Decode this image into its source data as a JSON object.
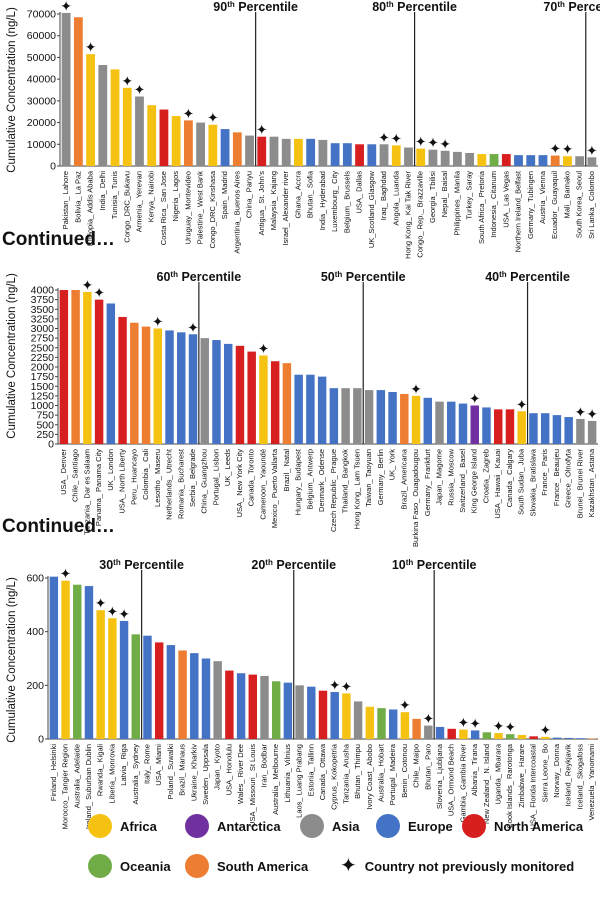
{
  "colors": {
    "Africa": "#f6c211",
    "Antarctica": "#7030a0",
    "Asia": "#8c8c8c",
    "Europe": "#4472c4",
    "North America": "#d81f1f",
    "Oceania": "#70ad47",
    "South America": "#ed7d31"
  },
  "continued_label": "Continued…",
  "legend": {
    "Africa": "Africa",
    "Antarctica": "Antarctica",
    "Asia": "Asia",
    "Europe": "Europe",
    "North America": "North America",
    "Oceania": "Oceania",
    "South America": "South America",
    "star": "Country not previously monitored"
  },
  "chart_data": [
    {
      "type": "bar",
      "ylabel": "Cumulative Concentration (ng/L)",
      "ylim": [
        0,
        70000
      ],
      "yticks": [
        "0",
        "10000",
        "20000",
        "30000",
        "40000",
        "50000",
        "60000",
        "70000"
      ],
      "percentiles": [
        {
          "label": "90",
          "after": "China_ Panyu"
        },
        {
          "label": "80",
          "after": "Hong Kong_ Kai Tak River"
        },
        {
          "label": "70",
          "after": "South Korea_ Seoul"
        }
      ],
      "categories": [
        "Pakistan_ Lahore",
        "Bolivia_ La Paz",
        "Ethiopia_ Addis Ababa",
        "India_ Delhi",
        "Tunisia_ Tunis",
        "Congo_DRC_Bukavu",
        "Armenia_ Yerevan",
        "Kenya_ Nairobi",
        "Costa Rica_ San Jose",
        "Nigeria_ Lagos",
        "Uruguay_ Montevideo",
        "Palestine_ West Bank",
        "Congo_DRC_Kinshasa",
        "Spain_ Madrid",
        "Argentina_ Buenos Aires",
        "China_ Panyu",
        "Antigua_ St. John's",
        "Malaysia_ Kajang",
        "Israel_ Alexander river",
        "Ghana_ Accra",
        "Bhutan_ Sofia",
        "India_ Hyderabad",
        "Luxembourg_ City",
        "Belgium_ Brussels",
        "USA_ Dallas",
        "UK_Scotland_Glasgow",
        "Iraq_ Baghdad",
        "Angola_ Luanda",
        "Hong Kong_ Kai Tak River",
        "Congo_ Rep._ Brazzaville",
        "Georgia_ Tbilisi",
        "Nepal_ Baisal",
        "Philippines_ Manila",
        "Turkey_ Saray",
        "South Africa_ Pretoria",
        "Indonesia_ Citanum",
        "USA_ Las Vegas",
        "Northern Ireland_Belfast",
        "Germany_ Tubingen",
        "Austria_ Vienna",
        "Ecuador_ Guayaquil",
        "Mali_ Bamako",
        "South Korea_ Seoul",
        "Sri Lanka_ Colombo"
      ],
      "values": [
        70500,
        68500,
        51500,
        46500,
        44500,
        36000,
        32000,
        28000,
        26000,
        23000,
        21000,
        20000,
        19000,
        17000,
        15500,
        14000,
        13500,
        13500,
        12500,
        12500,
        12500,
        12000,
        10500,
        10500,
        10000,
        10000,
        10000,
        9500,
        8500,
        8000,
        7500,
        7000,
        6500,
        6000,
        5500,
        5500,
        5500,
        5000,
        5000,
        5000,
        4800,
        4500,
        4500,
        4000
      ],
      "continent": [
        "Asia",
        "South America",
        "Africa",
        "Asia",
        "Africa",
        "Africa",
        "Asia",
        "Africa",
        "North America",
        "Africa",
        "South America",
        "Asia",
        "Africa",
        "Europe",
        "South America",
        "Asia",
        "North America",
        "Asia",
        "Asia",
        "Africa",
        "Europe",
        "Asia",
        "Europe",
        "Europe",
        "North America",
        "Europe",
        "Asia",
        "Africa",
        "Asia",
        "Africa",
        "Asia",
        "Asia",
        "Asia",
        "Asia",
        "Africa",
        "Oceania",
        "North America",
        "Europe",
        "Europe",
        "Europe",
        "South America",
        "Africa",
        "Asia",
        "Asia"
      ],
      "new_country": [
        true,
        false,
        true,
        false,
        false,
        true,
        true,
        false,
        false,
        false,
        true,
        false,
        true,
        false,
        false,
        false,
        true,
        false,
        false,
        false,
        false,
        false,
        false,
        false,
        false,
        false,
        true,
        true,
        false,
        true,
        true,
        true,
        false,
        false,
        false,
        false,
        false,
        false,
        false,
        false,
        true,
        true,
        false,
        true
      ]
    },
    {
      "type": "bar",
      "ylabel": "Cumulative Concentration (ng/L)",
      "ylim": [
        0,
        4000
      ],
      "yticks": [
        "0",
        "250",
        "500",
        "750",
        "1000",
        "1250",
        "1500",
        "1750",
        "2000",
        "2250",
        "2500",
        "2750",
        "3000",
        "3250",
        "3500",
        "3750",
        "4000"
      ],
      "percentiles": [
        {
          "label": "60",
          "after": "Serbia_ Belgrade"
        },
        {
          "label": "50",
          "after": "Hong Kong_ Lam Tsuen"
        },
        {
          "label": "40",
          "after": "South Sudan_ Juba"
        }
      ],
      "categories": [
        "USA_ Denver",
        "Chile_ Santiago",
        "Tanzania_ Dar es Salaam",
        "Panama_ Panama City",
        "UK_ London",
        "USA_ North Liberty",
        "Peru_ Huancayo",
        "Colombia_ Cali",
        "Lesotho_ Maseru",
        "Netherlands_ Utrecht",
        "Romania_ Bucharest",
        "Serbia_ Belgrade",
        "China_ Guangzhou",
        "Portugal_ Lisbon",
        "UK_ Leeds",
        "USA_ New York City",
        "Canada_ Toronto",
        "Cameroon_ Yaoundé",
        "Mexico_ Puerto Vallarta",
        "Brazil_ Natal",
        "Hungary_ Budapest",
        "Belgium_ Antwerp",
        "Denmark_ Odense",
        "Czech Republic_ Prague",
        "Thailand_ Bangkok",
        "Hong Kong_ Lam Tsuen",
        "Taiwan_ Taoyuan",
        "Germany_ Berlin",
        "UK_ York",
        "Brazil_ Americana",
        "Burkina Faso_ Ouagadougou",
        "Germany_ Frankfurt",
        "Japan_ Magome",
        "Russia_ Moscow",
        "Switzerland_ Basel",
        "King George Island",
        "Croatia_ Zagreb",
        "USA_ Hawaii_ Kauai",
        "Canada_ Calgary",
        "South Sudan_ Juba",
        "Slovakia_ Bratislava",
        "France_ Paris",
        "France_ Beaujeu",
        "Greece_ Olnofyta",
        "Brunei_ Brunei River",
        "Kazakhstan_ Astana"
      ],
      "values": [
        4000,
        4000,
        3950,
        3750,
        3650,
        3300,
        3150,
        3050,
        3000,
        2950,
        2900,
        2850,
        2750,
        2700,
        2600,
        2550,
        2400,
        2300,
        2150,
        2100,
        1800,
        1800,
        1750,
        1450,
        1450,
        1450,
        1400,
        1400,
        1350,
        1300,
        1250,
        1200,
        1100,
        1100,
        1050,
        1000,
        950,
        900,
        900,
        850,
        800,
        800,
        750,
        700,
        650,
        600
      ],
      "continent": [
        "North America",
        "South America",
        "Africa",
        "North America",
        "Europe",
        "North America",
        "South America",
        "South America",
        "Africa",
        "Europe",
        "Europe",
        "Europe",
        "Asia",
        "Europe",
        "Europe",
        "North America",
        "North America",
        "Africa",
        "North America",
        "South America",
        "Europe",
        "Europe",
        "Europe",
        "Europe",
        "Asia",
        "Asia",
        "Asia",
        "Europe",
        "Europe",
        "South America",
        "Africa",
        "Europe",
        "Asia",
        "Europe",
        "Europe",
        "Antarctica",
        "Europe",
        "North America",
        "North America",
        "Africa",
        "Europe",
        "Europe",
        "Europe",
        "Europe",
        "Asia",
        "Asia"
      ],
      "new_country": [
        false,
        false,
        true,
        true,
        false,
        false,
        false,
        false,
        true,
        false,
        false,
        true,
        false,
        false,
        false,
        false,
        false,
        true,
        false,
        false,
        false,
        false,
        false,
        false,
        false,
        false,
        false,
        false,
        false,
        false,
        true,
        false,
        false,
        false,
        false,
        true,
        false,
        false,
        false,
        true,
        false,
        false,
        false,
        false,
        true,
        true
      ]
    },
    {
      "type": "bar",
      "ylabel": "Cumulative Concentration (ng/L)",
      "ylim": [
        0,
        600
      ],
      "yticks": [
        "0",
        "200",
        "400",
        "600"
      ],
      "percentiles": [
        {
          "label": "30",
          "after": "Australia_ Sydney"
        },
        {
          "label": "20",
          "after": "Lithuania_ Vilnius"
        },
        {
          "label": "10",
          "after": "Bhutan_ Paro"
        }
      ],
      "categories": [
        "Finland_ Helsinki",
        "Morocco_ Tangier Region",
        "Australia_ Adelaide",
        "Ireland_ Suburban Dublin",
        "Rwanda_ Kigali",
        "Liberia_ Monrovia",
        "Latvia_ Riga",
        "Australia_ Sydney",
        "Italy_ Rome",
        "USA_ Miami",
        "Poland_ Suwalki",
        "Brazil_ Manaus",
        "Ukraine_ Kharkiv",
        "Sweden_ Uppsala",
        "Japan_ Kyoto",
        "USA_ Honolulu",
        "Wales_ River Dee",
        "USA_ Missouri_ St Louis",
        "Iran_ Bodbar",
        "Australia_ Melbourne",
        "Lithuania_ Vilnius",
        "Laos_ Luang Prabang",
        "Estonia_ Tallinn",
        "Canada_ Ottawa",
        "Cyprus_ Kokopetria",
        "Tanzania_ Arusha",
        "Bhutan_ Thimpu",
        "Ivory Coast_ Abobo",
        "Australia_ Hobart",
        "Portugal_ Madeira",
        "Benin_ Cotonou",
        "Chile_ Maipo",
        "Bhutan_ Paro",
        "Slovenia_ Ljubljana",
        "USA_ Ormond Beach",
        "Gambia_ Gambia River",
        "Albania_ Tirana",
        "New Zealand_ N. Island",
        "Uganda_ Mbarara",
        "Cook Islands_ Rarotonga",
        "Zimbabwe_ Harare",
        "USA_ Florida Intercoastal",
        "Sierra Leone_ Bo",
        "Norway_ Donna",
        "Iceland_ Reykjavik",
        "Iceland_ Skogafoss",
        "Venezuela_ Yanomami"
      ],
      "values": [
        605,
        590,
        575,
        570,
        480,
        450,
        440,
        390,
        385,
        360,
        350,
        330,
        320,
        300,
        290,
        255,
        245,
        240,
        235,
        215,
        210,
        200,
        195,
        180,
        175,
        170,
        140,
        120,
        115,
        110,
        100,
        75,
        50,
        45,
        38,
        35,
        32,
        25,
        22,
        18,
        15,
        10,
        8,
        5,
        4,
        3,
        2
      ],
      "continent": [
        "Europe",
        "Africa",
        "Oceania",
        "Europe",
        "Africa",
        "Africa",
        "Europe",
        "Oceania",
        "Europe",
        "North America",
        "Europe",
        "South America",
        "Europe",
        "Europe",
        "Asia",
        "North America",
        "Europe",
        "North America",
        "Asia",
        "Oceania",
        "Europe",
        "Asia",
        "Europe",
        "North America",
        "Europe",
        "Africa",
        "Asia",
        "Africa",
        "Oceania",
        "Europe",
        "Africa",
        "South America",
        "Asia",
        "Europe",
        "North America",
        "Africa",
        "Europe",
        "Oceania",
        "Africa",
        "Oceania",
        "Africa",
        "North America",
        "Africa",
        "Europe",
        "Europe",
        "Europe",
        "South America"
      ],
      "new_country": [
        false,
        true,
        false,
        false,
        true,
        true,
        true,
        false,
        false,
        false,
        false,
        false,
        false,
        false,
        false,
        false,
        false,
        false,
        false,
        false,
        false,
        false,
        false,
        false,
        true,
        true,
        false,
        false,
        false,
        false,
        true,
        false,
        true,
        false,
        false,
        true,
        true,
        false,
        true,
        true,
        false,
        false,
        true,
        false,
        false,
        false,
        false
      ]
    }
  ]
}
